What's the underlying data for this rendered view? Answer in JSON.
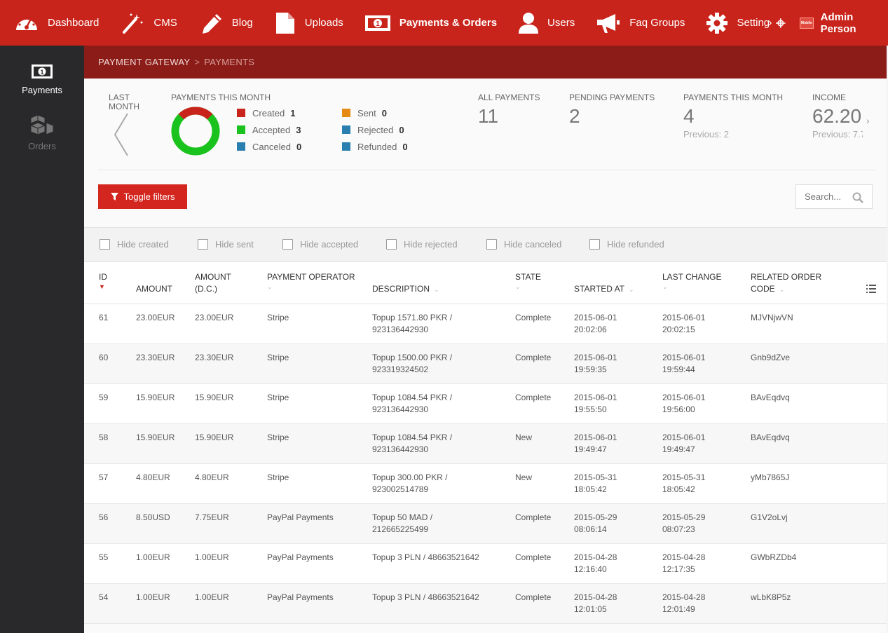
{
  "nav": {
    "items": [
      {
        "label": "Dashboard",
        "icon": "dashboard-icon"
      },
      {
        "label": "CMS",
        "icon": "magic-wand-icon"
      },
      {
        "label": "Blog",
        "icon": "pencil-icon"
      },
      {
        "label": "Uploads",
        "icon": "file-icon"
      },
      {
        "label": "Payments & Orders",
        "icon": "money-icon",
        "active": true
      },
      {
        "label": "Users",
        "icon": "user-icon"
      },
      {
        "label": "Faq Groups",
        "icon": "megaphone-icon"
      },
      {
        "label": "Setting",
        "icon": "gear-icon"
      }
    ],
    "overflow_glyph": "›",
    "admin_name": "Admin Person",
    "admin_logo_text": "Mobile Co"
  },
  "sidebar": {
    "items": [
      {
        "label": "Payments",
        "icon": "money-icon",
        "active": true
      },
      {
        "label": "Orders",
        "icon": "boxes-icon"
      }
    ]
  },
  "breadcrumb": {
    "parent": "PAYMENT GATEWAY",
    "separator": ">",
    "current": "PAYMENTS"
  },
  "stats": {
    "last_month": "LAST MONTH",
    "payments_this_month_title": "PAYMENTS THIS MONTH",
    "legend": [
      {
        "label": "Created",
        "count": "1",
        "color": "#c9241b"
      },
      {
        "label": "Accepted",
        "count": "3",
        "color": "#19c21d"
      },
      {
        "label": "Canceled",
        "count": "0",
        "color": "#2a7fb0"
      },
      {
        "label": "Sent",
        "count": "0",
        "color": "#e58a12"
      },
      {
        "label": "Rejected",
        "count": "0",
        "color": "#2a7fb0"
      },
      {
        "label": "Refunded",
        "count": "0",
        "color": "#2a7fb0"
      }
    ],
    "kpis": [
      {
        "label": "ALL PAYMENTS",
        "value": "11",
        "previous": ""
      },
      {
        "label": "PENDING PAYMENTS",
        "value": "2",
        "previous": ""
      },
      {
        "label": "PAYMENTS THIS MONTH",
        "value": "4",
        "previous": "Previous: 2"
      },
      {
        "label": "INCOME",
        "value": "62.20",
        "previous": "Previous: 7.7"
      }
    ]
  },
  "toolbar": {
    "toggle_filters": "Toggle filters",
    "search_placeholder": "Search..."
  },
  "filters": [
    "Hide created",
    "Hide sent",
    "Hide accepted",
    "Hide rejected",
    "Hide canceled",
    "Hide refunded"
  ],
  "table": {
    "headers": {
      "id": "ID",
      "amount": "AMOUNT",
      "amount_dc_1": "AMOUNT",
      "amount_dc_2": "(D.C.)",
      "operator": "PAYMENT OPERATOR",
      "description": "DESCRIPTION",
      "state": "STATE",
      "started": "STARTED AT",
      "last_1": "LAST CHANGE",
      "code_1": "RELATED ORDER",
      "code_2": "CODE"
    },
    "rows": [
      {
        "id": "61",
        "amount": "23.00EUR",
        "amount_dc": "23.00EUR",
        "operator": "Stripe",
        "desc1": "Topup 1571.80 PKR /",
        "desc2": "923136442930",
        "state": "Complete",
        "start_date": "2015-06-01",
        "start_time": "20:02:06",
        "last_date": "2015-06-01",
        "last_time": "20:02:15",
        "code": "MJVNjwVN"
      },
      {
        "id": "60",
        "amount": "23.30EUR",
        "amount_dc": "23.30EUR",
        "operator": "Stripe",
        "desc1": "Topup 1500.00 PKR /",
        "desc2": "923319324502",
        "state": "Complete",
        "start_date": "2015-06-01",
        "start_time": "19:59:35",
        "last_date": "2015-06-01",
        "last_time": "19:59:44",
        "code": "Gnb9dZve"
      },
      {
        "id": "59",
        "amount": "15.90EUR",
        "amount_dc": "15.90EUR",
        "operator": "Stripe",
        "desc1": "Topup 1084.54 PKR /",
        "desc2": "923136442930",
        "state": "Complete",
        "start_date": "2015-06-01",
        "start_time": "19:55:50",
        "last_date": "2015-06-01",
        "last_time": "19:56:00",
        "code": "BAvEqdvq"
      },
      {
        "id": "58",
        "amount": "15.90EUR",
        "amount_dc": "15.90EUR",
        "operator": "Stripe",
        "desc1": "Topup 1084.54 PKR /",
        "desc2": "923136442930",
        "state": "New",
        "start_date": "2015-06-01",
        "start_time": "19:49:47",
        "last_date": "2015-06-01",
        "last_time": "19:49:47",
        "code": "BAvEqdvq"
      },
      {
        "id": "57",
        "amount": "4.80EUR",
        "amount_dc": "4.80EUR",
        "operator": "Stripe",
        "desc1": "Topup 300.00 PKR /",
        "desc2": "923002514789",
        "state": "New",
        "start_date": "2015-05-31",
        "start_time": "18:05:42",
        "last_date": "2015-05-31",
        "last_time": "18:05:42",
        "code": "yMb7865J"
      },
      {
        "id": "56",
        "amount": "8.50USD",
        "amount_dc": "7.75EUR",
        "operator": "PayPal Payments",
        "desc1": "Topup 50 MAD /",
        "desc2": "212665225499",
        "state": "Complete",
        "start_date": "2015-05-29",
        "start_time": "08:06:14",
        "last_date": "2015-05-29",
        "last_time": "08:07:23",
        "code": "G1V2oLvj"
      },
      {
        "id": "55",
        "amount": "1.00EUR",
        "amount_dc": "1.00EUR",
        "operator": "PayPal Payments",
        "desc1": "Topup 3 PLN / 48663521642",
        "desc2": "",
        "state": "Complete",
        "start_date": "2015-04-28",
        "start_time": "12:16:40",
        "last_date": "2015-04-28",
        "last_time": "12:17:35",
        "code": "GWbRZDb4"
      },
      {
        "id": "54",
        "amount": "1.00EUR",
        "amount_dc": "1.00EUR",
        "operator": "PayPal Payments",
        "desc1": "Topup 3 PLN / 48663521642",
        "desc2": "",
        "state": "Complete",
        "start_date": "2015-04-28",
        "start_time": "12:01:05",
        "last_date": "2015-04-28",
        "last_time": "12:01:49",
        "code": "wLbK8P5z"
      }
    ]
  }
}
